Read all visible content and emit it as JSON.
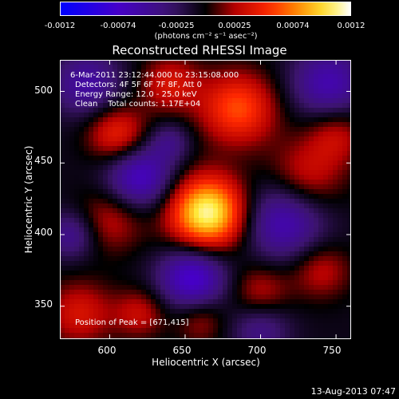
{
  "colorbar": {
    "tick_labels": [
      "-0.0012",
      "-0.00074",
      "-0.00025",
      "0.00025",
      "0.00074",
      "0.0012"
    ],
    "units": "(photons cm⁻² s⁻¹ asec⁻²)",
    "range": [
      -0.0012,
      0.0012
    ]
  },
  "title": "Reconstructed RHESSI Image",
  "annotations": {
    "time_range": "6-Mar-2011 23:12:44.000 to 23:15:08.000",
    "detectors": "Detectors: 4F 5F 6F 7F 8F, Att 0",
    "energy_range": "Energy Range: 12.0 - 25.0 keV",
    "method_counts": "Clean    Total counts: 1.17E+04",
    "peak_position": "Position of Peak = [671,415]"
  },
  "axes": {
    "xlabel": "Heliocentric X (arcsec)",
    "ylabel": "Heliocentric Y (arcsec)",
    "xlim": [
      567,
      760
    ],
    "ylim": [
      327,
      522
    ],
    "xticks": [
      "600",
      "650",
      "700",
      "750"
    ],
    "xtick_values": [
      600,
      650,
      700,
      750
    ],
    "yticks": [
      "500",
      "450",
      "400",
      "350"
    ],
    "ytick_values": [
      500,
      450,
      400,
      350
    ]
  },
  "image_sources": [
    {
      "x": 665,
      "y": 415,
      "amp": 1.0,
      "w": 18
    },
    {
      "x": 685,
      "y": 488,
      "amp": 0.55,
      "w": 18
    },
    {
      "x": 605,
      "y": 470,
      "amp": 0.45,
      "w": 14
    },
    {
      "x": 640,
      "y": 505,
      "amp": 0.35,
      "w": 14
    },
    {
      "x": 600,
      "y": 410,
      "amp": 0.3,
      "w": 16
    },
    {
      "x": 730,
      "y": 440,
      "amp": 0.35,
      "w": 18
    },
    {
      "x": 750,
      "y": 470,
      "amp": 0.3,
      "w": 14
    },
    {
      "x": 580,
      "y": 345,
      "amp": 0.35,
      "w": 16
    },
    {
      "x": 620,
      "y": 345,
      "amp": 0.3,
      "w": 12
    },
    {
      "x": 700,
      "y": 360,
      "amp": 0.3,
      "w": 14
    },
    {
      "x": 740,
      "y": 375,
      "amp": 0.3,
      "w": 14
    },
    {
      "x": 660,
      "y": 340,
      "amp": 0.25,
      "w": 12
    },
    {
      "x": 620,
      "y": 440,
      "amp": -0.55,
      "w": 16
    },
    {
      "x": 715,
      "y": 410,
      "amp": -0.5,
      "w": 20
    },
    {
      "x": 655,
      "y": 370,
      "amp": -0.6,
      "w": 16
    },
    {
      "x": 745,
      "y": 505,
      "amp": -0.45,
      "w": 18
    },
    {
      "x": 585,
      "y": 505,
      "amp": -0.4,
      "w": 16
    },
    {
      "x": 575,
      "y": 400,
      "amp": -0.35,
      "w": 12
    },
    {
      "x": 640,
      "y": 465,
      "amp": -0.25,
      "w": 10
    },
    {
      "x": 700,
      "y": 335,
      "amp": -0.3,
      "w": 14
    }
  ],
  "footer": "13-Aug-2013 07:47"
}
